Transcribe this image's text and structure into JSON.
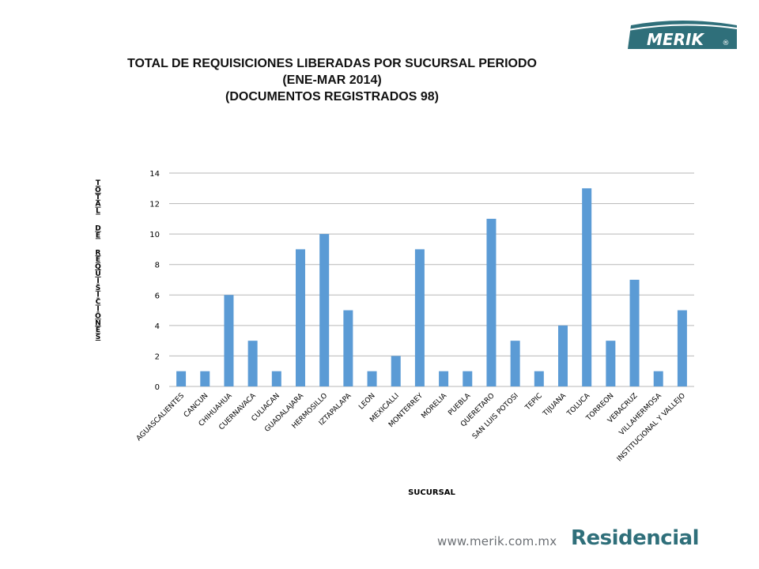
{
  "header": {
    "title_lines": [
      "TOTAL DE REQUISICIONES LIBERADAS POR SUCURSAL PERIODO",
      "(ENE-MAR 2014)",
      "(DOCUMENTOS REGISTRADOS 98)"
    ],
    "logo_text": "MERIK",
    "logo_mark": "®"
  },
  "footer": {
    "url": "www.merik.com.mx",
    "brand": "Residencial"
  },
  "colors": {
    "bar": "#5b9bd5",
    "brand": "#2f6f7a",
    "grid": "#b7b7b7"
  },
  "chart_data": {
    "type": "bar",
    "title": "TOTAL DE REQUISICIONES LIBERADAS POR SUCURSAL PERIODO (ENE-MAR 2014) (DOCUMENTOS REGISTRADOS 98)",
    "xlabel": "SUCURSAL",
    "ylabel": "TOTAL DE REQUISICIONES",
    "ylim": [
      0,
      14
    ],
    "yticks": [
      "0",
      "2",
      "4",
      "6",
      "8",
      "10",
      "12",
      "14"
    ],
    "grid": true,
    "categories": [
      "AGUASCALIENTES",
      "CANCUN",
      "CHIHUAHUA",
      "CUERNAVACA",
      "CULIACAN",
      "GUADALAJARA",
      "HERMOSILLO",
      "IZTAPALAPA",
      "LEON",
      "MEXICALLI",
      "MONTERREY",
      "MORELIA",
      "PUEBLA",
      "QUERETARO",
      "SAN LUIS POTOSI",
      "TEPIC",
      "TIJUANA",
      "TOLUCA",
      "TORREON",
      "VERACRUZ",
      "VILLAHERMOSA",
      "INSTITUCIONAL Y VALLEJO"
    ],
    "values": [
      1,
      1,
      6,
      3,
      1,
      9,
      10,
      5,
      1,
      2,
      9,
      1,
      1,
      11,
      3,
      1,
      4,
      13,
      3,
      7,
      1,
      5
    ]
  }
}
